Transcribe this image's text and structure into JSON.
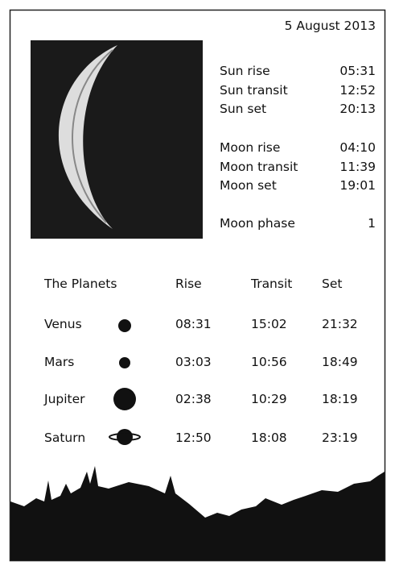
{
  "date": "5 August 2013",
  "sun": [
    {
      "label": "Sun rise",
      "time": "05:31"
    },
    {
      "label": "Sun transit",
      "time": "12:52"
    },
    {
      "label": "Sun set",
      "time": "20:13"
    }
  ],
  "moon": [
    {
      "label": "Moon rise",
      "time": "04:10"
    },
    {
      "label": "Moon transit",
      "time": "11:39"
    },
    {
      "label": "Moon set",
      "time": "19:01"
    }
  ],
  "moon_phase": {
    "label": "Moon phase",
    "value": 1
  },
  "planets": {
    "header": [
      "The Planets",
      "Rise",
      "Transit",
      "Set"
    ],
    "rows": [
      [
        "Venus",
        "08:31",
        "15:02",
        "21:32"
      ],
      [
        "Mars",
        "03:03",
        "10:56",
        "18:49"
      ],
      [
        "Jupiter",
        "02:38",
        "10:29",
        "18:19"
      ],
      [
        "Saturn",
        "12:50",
        "18:08",
        "23:19"
      ]
    ]
  }
}
